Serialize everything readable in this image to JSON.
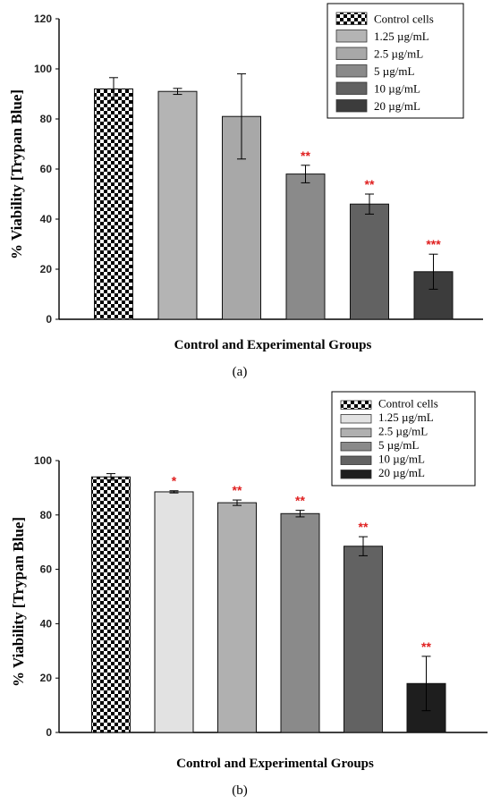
{
  "chart_data": [
    {
      "type": "bar",
      "panel_label": "(a)",
      "categories": [
        "Control cells",
        "1.25 µg/mL",
        "2.5 µg/mL",
        "5 µg/mL",
        "10 µg/mL",
        "20 µg/mL"
      ],
      "values": [
        92,
        91,
        81,
        58,
        46,
        19
      ],
      "errors": [
        4.5,
        1.2,
        17,
        3.5,
        4,
        7
      ],
      "significance": [
        "",
        "",
        "",
        "**",
        "**",
        "***"
      ],
      "colors": [
        "checker",
        "#b4b4b4",
        "#a8a8a8",
        "#8a8a8a",
        "#626262",
        "#3c3c3c"
      ],
      "ylabel": "% Viability [Trypan Blue]",
      "xlabel": "Control and Experimental Groups",
      "ylim": [
        0,
        120
      ],
      "yticks": [
        "0",
        "20",
        "40",
        "60",
        "80",
        "100",
        "120"
      ],
      "legend": [
        "Control cells",
        "1.25 µg/mL",
        "2.5 µg/mL",
        "5 µg/mL",
        "10 µg/mL",
        "20 µg/mL"
      ],
      "legend_position": "top-right",
      "grid": false
    },
    {
      "type": "bar",
      "panel_label": "(b)",
      "categories": [
        "Control cells",
        "1.25 µg/mL",
        "2.5 µg/mL",
        "5 µg/mL",
        "10 µg/mL",
        "20 µg/mL"
      ],
      "values": [
        94,
        88.5,
        84.5,
        80.5,
        68.5,
        18
      ],
      "errors": [
        1.2,
        0.4,
        1,
        1.2,
        3.5,
        10
      ],
      "significance": [
        "",
        "*",
        "**",
        "**",
        "**",
        "**"
      ],
      "colors": [
        "checker",
        "#e2e2e2",
        "#b0b0b0",
        "#8a8a8a",
        "#626262",
        "#1e1e1e"
      ],
      "ylabel": "% Viability [Trypan Blue]",
      "xlabel": "Control and Experimental Groups",
      "ylim": [
        0,
        100
      ],
      "yticks": [
        "0",
        "20",
        "40",
        "60",
        "80",
        "100"
      ],
      "legend": [
        "Control cells",
        "1.25 µg/mL",
        "2.5 µg/mL",
        "5 µg/mL",
        "10 µg/mL",
        "20 µg/mL"
      ],
      "legend_position": "top-right",
      "grid": false
    }
  ]
}
